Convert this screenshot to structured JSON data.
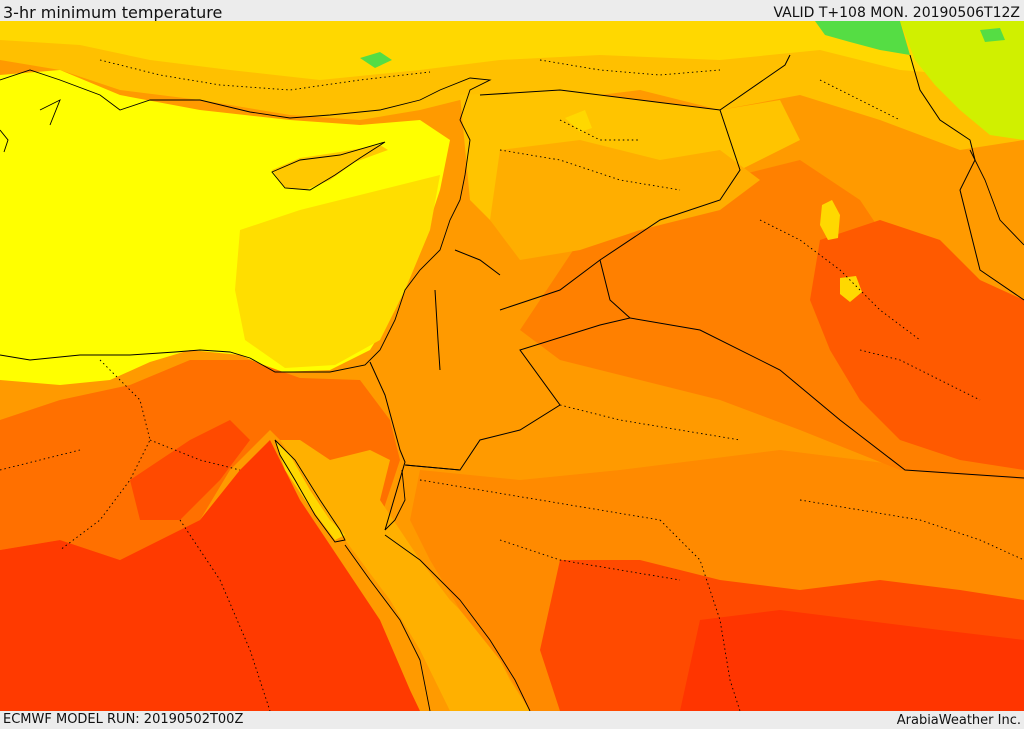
{
  "header": {
    "title": "3-hr minimum temperature",
    "valid_time": "VALID T+108 MON. 20190506T12Z"
  },
  "footer": {
    "model_run": "ECMWF MODEL RUN: 20190502T00Z",
    "credit": "ArabiaWeather Inc."
  },
  "palette": {
    "green": "#55dd44",
    "yellow_green": "#c8f000",
    "yellow": "#ffff00",
    "gold": "#ffd700",
    "light_orange": "#ffbe00",
    "orange": "#ffa000",
    "dark_orange": "#ff7e00",
    "red_orange": "#ff5a00",
    "red": "#ff3200",
    "border_color": "#000000"
  }
}
